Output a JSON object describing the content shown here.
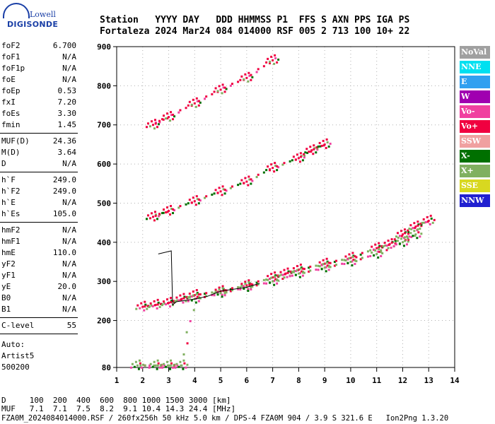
{
  "logo": {
    "lowell": "Lowell",
    "digisonde": "DIGISONDE"
  },
  "header": {
    "labels": [
      "Station",
      "YYYY",
      "DAY",
      "DDD",
      "HHMMSS",
      "P1",
      "FFS",
      "S",
      "AXN",
      "PPS",
      "IGA",
      "PS"
    ],
    "values": [
      "Fortaleza",
      "2024",
      "Mar24",
      "084",
      "014000",
      "RSF",
      "005",
      "2",
      "713",
      "100",
      "10+",
      "22"
    ]
  },
  "params": {
    "group1": [
      {
        "name": "foF2",
        "value": "6.700"
      },
      {
        "name": "foF1",
        "value": "N/A"
      },
      {
        "name": "foF1p",
        "value": "N/A"
      },
      {
        "name": "foE",
        "value": "N/A"
      },
      {
        "name": "foEp",
        "value": "0.53"
      },
      {
        "name": "fxI",
        "value": "7.20"
      },
      {
        "name": "foEs",
        "value": "3.30"
      },
      {
        "name": "fmin",
        "value": "1.45"
      }
    ],
    "group2": [
      {
        "name": "MUF(D)",
        "value": "24.36"
      },
      {
        "name": "M(D)",
        "value": "3.64"
      },
      {
        "name": "D",
        "value": "N/A"
      }
    ],
    "group3": [
      {
        "name": "h`F",
        "value": "249.0"
      },
      {
        "name": "h`F2",
        "value": "249.0"
      },
      {
        "name": "h`E",
        "value": "N/A"
      },
      {
        "name": "h`Es",
        "value": "105.0"
      }
    ],
    "group4": [
      {
        "name": "hmF2",
        "value": "N/A"
      },
      {
        "name": "hmF1",
        "value": "N/A"
      },
      {
        "name": "hmE",
        "value": "110.0"
      },
      {
        "name": "yF2",
        "value": "N/A"
      },
      {
        "name": "yF1",
        "value": "N/A"
      },
      {
        "name": "yE",
        "value": "20.0"
      },
      {
        "name": "B0",
        "value": "N/A"
      },
      {
        "name": "B1",
        "value": "N/A"
      }
    ],
    "group5": [
      {
        "name": "C-level",
        "value": "55"
      }
    ],
    "auto": [
      "Auto:",
      "Artist5",
      "500200"
    ]
  },
  "legend": [
    {
      "label": "NoVal",
      "color": "#a0a0a0"
    },
    {
      "label": "NNE",
      "color": "#00e0f0"
    },
    {
      "label": "E",
      "color": "#30a0f0"
    },
    {
      "label": "W",
      "color": "#a000b0"
    },
    {
      "label": "Vo-",
      "color": "#f040a0"
    },
    {
      "label": "Vo+",
      "color": "#f00040"
    },
    {
      "label": "SSW",
      "color": "#f0a0a0"
    },
    {
      "label": "X-",
      "color": "#007000"
    },
    {
      "label": "X+",
      "color": "#80b060"
    },
    {
      "label": "SSE",
      "color": "#d8d820"
    },
    {
      "label": "NNW",
      "color": "#2020d0"
    }
  ],
  "bottom": {
    "line1": "D     100  200  400  600  800 1000 1500 3000 [km]",
    "line2": "MUF   7.1  7.1  7.5  8.2  9.1 10.4 14.3 24.4 [MHz]",
    "line3": "FZA0M_2024084014000.RSF / 260fx256h 50 kHz 5.0 km / DPS-4 FZA0M 904 / 3.9 S 321.6 E   Ion2Png 1.3.20"
  },
  "chart_data": {
    "type": "scatter",
    "title": "",
    "xlabel": "",
    "ylabel": "",
    "xlim": [
      1,
      14
    ],
    "ylim": [
      80,
      900
    ],
    "x_ticks": [
      1,
      2,
      3,
      4,
      5,
      6,
      7,
      8,
      9,
      10,
      11,
      12,
      13,
      14
    ],
    "y_ticks": [
      80,
      200,
      300,
      400,
      500,
      600,
      700,
      800,
      900
    ],
    "series": [
      {
        "name": "Vo+",
        "color": "#f00040",
        "x": [
          2.0,
          2.5,
          3.0,
          3.5,
          4.0,
          5.0,
          6.0,
          7.0,
          7.5,
          8.0,
          9.0,
          10.0,
          11.0,
          11.5,
          12.0,
          12.5,
          13.0
        ],
        "y": [
          235,
          240,
          245,
          255,
          265,
          275,
          290,
          310,
          320,
          330,
          345,
          360,
          385,
          395,
          420,
          440,
          455
        ]
      },
      {
        "name": "X+",
        "color": "#80b060",
        "x": [
          1.8,
          2.5,
          3.0,
          3.5,
          4.0,
          5.0,
          6.0,
          7.0,
          8.0,
          9.0,
          10.0,
          11.0,
          12.0,
          12.5
        ],
        "y": [
          85,
          85,
          85,
          85,
          255,
          270,
          285,
          300,
          320,
          335,
          350,
          370,
          400,
          420
        ]
      },
      {
        "name": "Vo+ 2nd",
        "color": "#f00040",
        "x": [
          2.4,
          3.0,
          4.0,
          5.0,
          6.0,
          7.0,
          8.0,
          8.5,
          9.0
        ],
        "y": [
          465,
          480,
          505,
          530,
          555,
          590,
          615,
          635,
          650
        ]
      },
      {
        "name": "Vo+ 3rd",
        "color": "#f00040",
        "x": [
          2.4,
          3.0,
          4.0,
          5.0,
          6.0,
          7.0
        ],
        "y": [
          700,
          720,
          755,
          790,
          820,
          865
        ]
      }
    ],
    "trace": {
      "x": [
        2.6,
        3.1,
        3.15,
        3.3,
        4.0,
        4.5,
        5.0,
        6.0,
        6.5
      ],
      "y": [
        370,
        378,
        240,
        248,
        255,
        262,
        275,
        285,
        295
      ]
    }
  }
}
